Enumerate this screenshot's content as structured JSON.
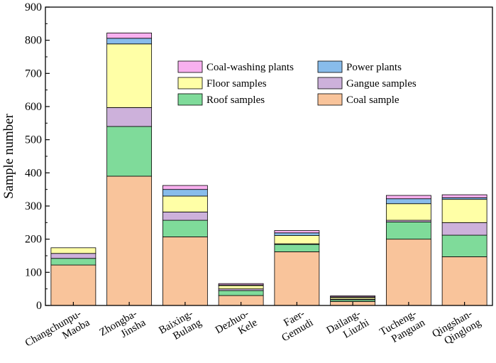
{
  "chart_data": {
    "type": "bar",
    "stacked": true,
    "ylabel": "Sample number",
    "xlabel": "",
    "ylim": [
      0,
      900
    ],
    "yticks": [
      0,
      100,
      200,
      300,
      400,
      500,
      600,
      700,
      800,
      900
    ],
    "categories": [
      [
        "Changchunpu-",
        "Maoba"
      ],
      [
        "Zhongba-",
        "Jinsha"
      ],
      [
        "Baixing-",
        "Bulang"
      ],
      [
        "Dezhuo-",
        "Kele"
      ],
      [
        "Faer-",
        "Gemudi"
      ],
      [
        "Dailang-",
        "Liuzhi"
      ],
      [
        "Tucheng-",
        "Panguan"
      ],
      [
        "Qingshan-",
        "Qinglong"
      ]
    ],
    "series": [
      {
        "name": "Coal sample",
        "color": "#F9C49B",
        "values": [
          122,
          390,
          207,
          30,
          162,
          12,
          200,
          147
        ]
      },
      {
        "name": "Roof samples",
        "color": "#7FDB9A",
        "values": [
          20,
          150,
          50,
          15,
          22,
          5,
          52,
          65
        ]
      },
      {
        "name": "Gangue samples",
        "color": "#CDB1DB",
        "values": [
          15,
          57,
          25,
          5,
          2,
          2,
          5,
          38
        ]
      },
      {
        "name": "Floor samples",
        "color": "#FFFFA6",
        "values": [
          17,
          192,
          48,
          10,
          25,
          5,
          50,
          70
        ]
      },
      {
        "name": "Power plants",
        "color": "#88BCEB",
        "values": [
          0,
          17,
          20,
          2,
          8,
          2,
          15,
          5
        ]
      },
      {
        "name": "Coal-washing plants",
        "color": "#F8B0EF",
        "values": [
          0,
          16,
          12,
          4,
          7,
          3,
          10,
          9
        ]
      }
    ],
    "legend": {
      "placement": "top-right",
      "order": [
        "Coal-washing plants",
        "Power plants",
        "Floor samples",
        "Gangue samples",
        "Roof samples",
        "Coal sample"
      ]
    },
    "grid": false
  }
}
